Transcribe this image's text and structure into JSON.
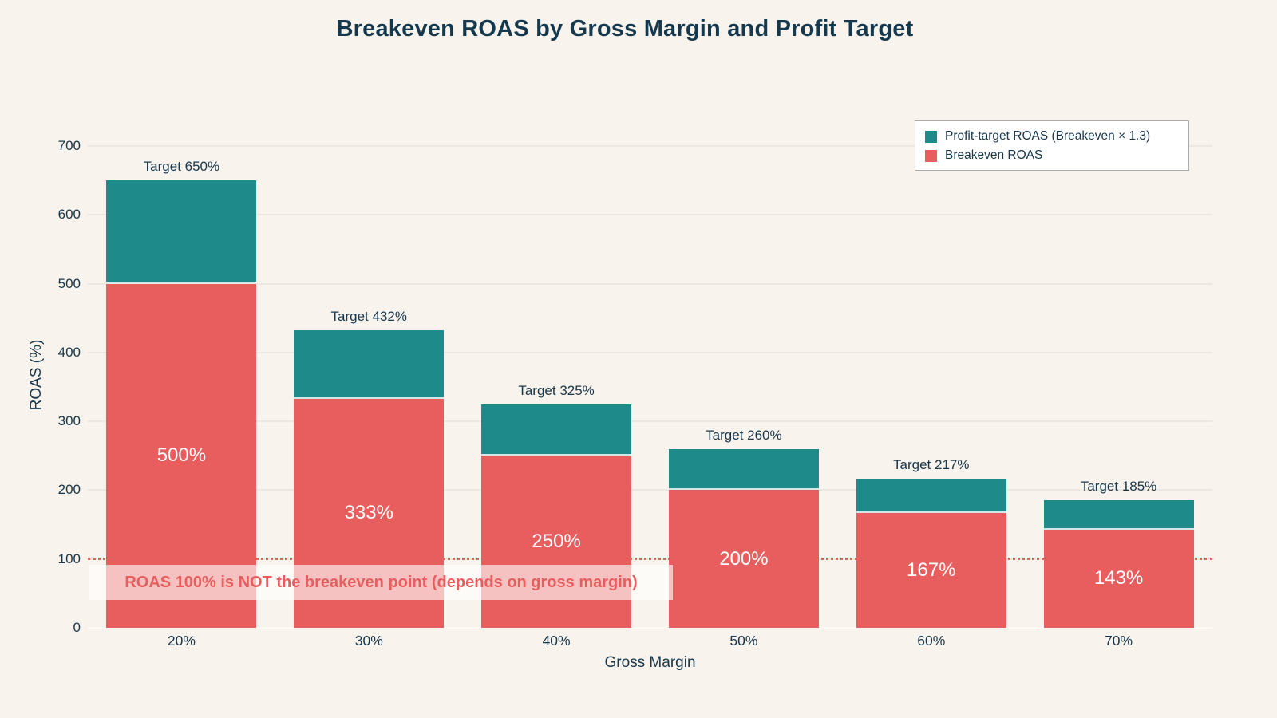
{
  "chart_data": {
    "type": "bar",
    "stacked": true,
    "title": "Breakeven ROAS by Gross Margin and Profit Target",
    "xlabel": "Gross Margin",
    "ylabel": "ROAS (%)",
    "categories": [
      "20%",
      "30%",
      "40%",
      "50%",
      "60%",
      "70%"
    ],
    "series": [
      {
        "name": "Breakeven ROAS",
        "values": [
          500,
          333,
          250,
          200,
          167,
          143
        ],
        "color": "#e85e5e"
      },
      {
        "name": "Profit-target ROAS (Breakeven × 1.3)",
        "values": [
          650,
          432,
          325,
          260,
          217,
          185
        ],
        "color": "#1e8b8a"
      }
    ],
    "bar_value_labels": [
      "500%",
      "333%",
      "250%",
      "200%",
      "167%",
      "143%"
    ],
    "target_labels": [
      "Target 650%",
      "Target 432%",
      "Target 325%",
      "Target 260%",
      "Target 217%",
      "Target 185%"
    ],
    "yticks": [
      "0",
      "100",
      "200",
      "300",
      "400",
      "500",
      "600",
      "700"
    ],
    "ylim": [
      0,
      700
    ],
    "grid": true,
    "legend": {
      "position": "top-right",
      "entries": [
        {
          "label": "Profit-target ROAS (Breakeven × 1.3)",
          "color": "#1e8b8a"
        },
        {
          "label": "Breakeven ROAS",
          "color": "#e85e5e"
        }
      ]
    },
    "reference_line": {
      "value": 100,
      "style": "dotted",
      "color": "#e85d5d"
    },
    "annotation": {
      "text": "ROAS 100% is NOT the breakeven point (depends on gross margin)",
      "color": "#e85d5d"
    },
    "colors": {
      "background": "#f8f3ec",
      "grid": "#ece8e1",
      "axis_text": "#17374c",
      "bar_label": "#ffffff"
    }
  }
}
